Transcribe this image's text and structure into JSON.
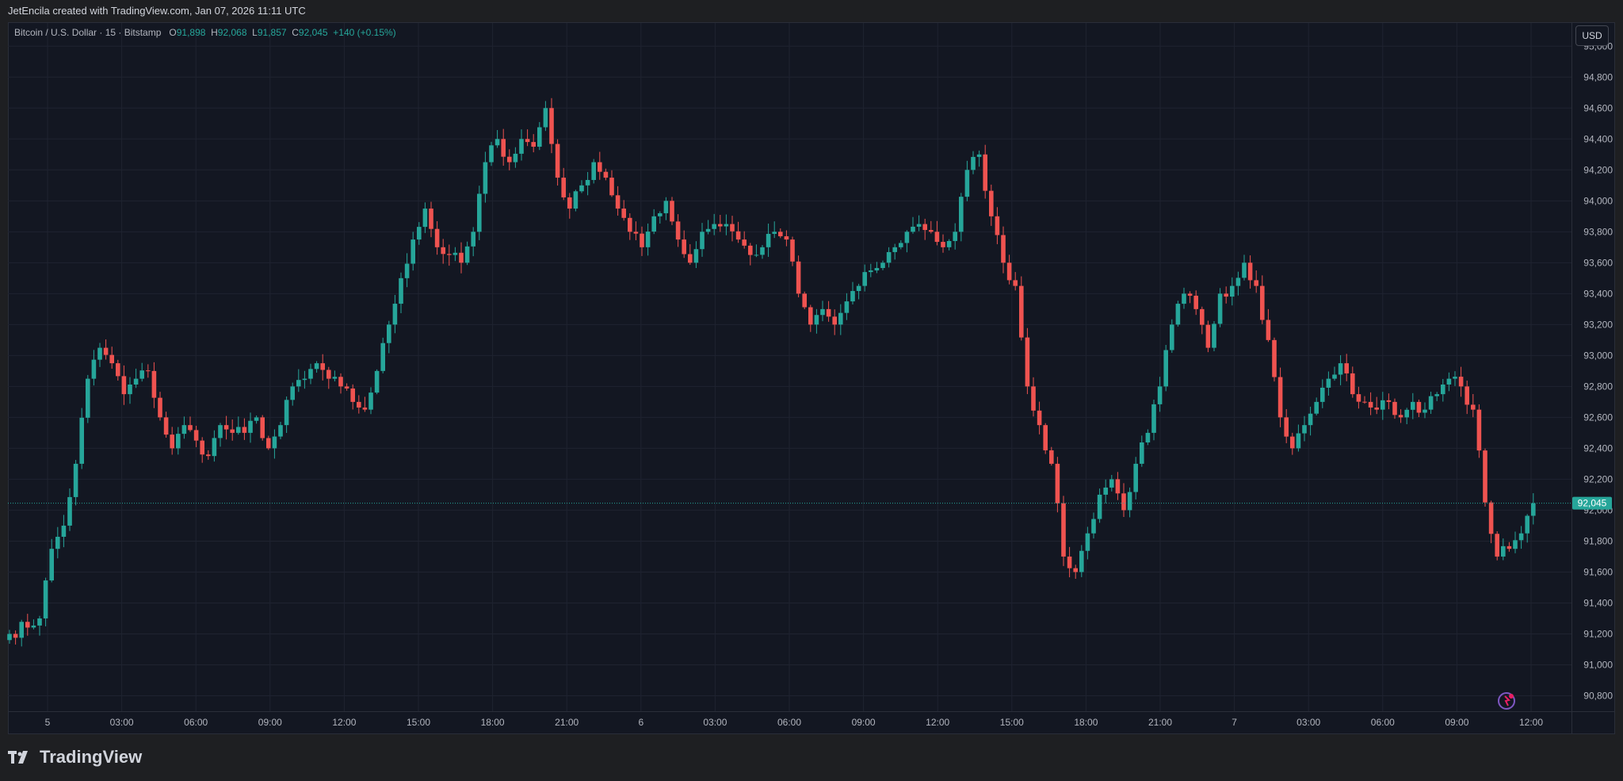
{
  "header": {
    "attribution": "JetEncila created with TradingView.com, Jan 07, 2026 11:11 UTC"
  },
  "legend": {
    "symbol": "Bitcoin / U.S. Dollar · 15 · Bitstamp",
    "o_label": "O",
    "o_value": "91,898",
    "h_label": "H",
    "h_value": "92,068",
    "l_label": "L",
    "l_value": "91,857",
    "c_label": "C",
    "c_value": "92,045",
    "change": "+140 (+0.15%)"
  },
  "currency_button": "USD",
  "last_price_label": "92,045",
  "footer": {
    "brand": "TradingView"
  },
  "colors": {
    "up": "#26a69a",
    "down": "#ef5350",
    "background": "#131722",
    "grid": "#1f2330",
    "axis_text": "#b2b5be"
  },
  "chart_data": {
    "type": "candlestick",
    "title": "Bitcoin / U.S. Dollar · 15 · Bitstamp",
    "ylim": [
      90700,
      95150
    ],
    "y_ticks": [
      95000,
      94800,
      94600,
      94400,
      94200,
      94000,
      93800,
      93600,
      93400,
      93200,
      93000,
      92800,
      92600,
      92400,
      92200,
      92000,
      91800,
      91600,
      91400,
      91200,
      91000,
      90800
    ],
    "y_tick_labels": [
      "95,000",
      "94,800",
      "94,600",
      "94,400",
      "94,200",
      "94,000",
      "93,800",
      "93,600",
      "93,400",
      "93,200",
      "93,000",
      "92,800",
      "92,600",
      "92,400",
      "92,200",
      "92,000",
      "91,800",
      "91,600",
      "91,400",
      "91,200",
      "91,000",
      "90,800"
    ],
    "x_tick_labels": [
      "5",
      "03:00",
      "06:00",
      "09:00",
      "12:00",
      "15:00",
      "18:00",
      "21:00",
      "6",
      "03:00",
      "06:00",
      "09:00",
      "12:00",
      "15:00",
      "18:00",
      "21:00",
      "7",
      "03:00",
      "06:00",
      "09:00",
      "12:00"
    ],
    "last_price": 92045,
    "anchors": [
      [
        0,
        91200
      ],
      [
        5,
        91300
      ],
      [
        7,
        91750
      ],
      [
        9,
        91900
      ],
      [
        11,
        92300
      ],
      [
        13,
        92850
      ],
      [
        15,
        93050
      ],
      [
        17,
        92950
      ],
      [
        19,
        92750
      ],
      [
        21,
        92850
      ],
      [
        23,
        92900
      ],
      [
        25,
        92600
      ],
      [
        27,
        92400
      ],
      [
        29,
        92550
      ],
      [
        31,
        92450
      ],
      [
        33,
        92350
      ],
      [
        35,
        92550
      ],
      [
        37,
        92500
      ],
      [
        39,
        92500
      ],
      [
        41,
        92600
      ],
      [
        43,
        92400
      ],
      [
        45,
        92550
      ],
      [
        47,
        92800
      ],
      [
        49,
        92850
      ],
      [
        51,
        92950
      ],
      [
        53,
        92850
      ],
      [
        55,
        92800
      ],
      [
        57,
        92700
      ],
      [
        59,
        92650
      ],
      [
        61,
        92900
      ],
      [
        63,
        93200
      ],
      [
        65,
        93500
      ],
      [
        67,
        93750
      ],
      [
        69,
        93950
      ],
      [
        71,
        93700
      ],
      [
        73,
        93650
      ],
      [
        75,
        93600
      ],
      [
        77,
        93800
      ],
      [
        79,
        94250
      ],
      [
        81,
        94400
      ],
      [
        83,
        94250
      ],
      [
        85,
        94400
      ],
      [
        87,
        94350
      ],
      [
        89,
        94600
      ],
      [
        91,
        94150
      ],
      [
        93,
        93950
      ],
      [
        95,
        94100
      ],
      [
        97,
        94250
      ],
      [
        99,
        94150
      ],
      [
        101,
        93950
      ],
      [
        103,
        93800
      ],
      [
        105,
        93700
      ],
      [
        107,
        93900
      ],
      [
        109,
        94000
      ],
      [
        111,
        93750
      ],
      [
        113,
        93600
      ],
      [
        115,
        93800
      ],
      [
        117,
        93850
      ],
      [
        119,
        93850
      ],
      [
        121,
        93750
      ],
      [
        123,
        93650
      ],
      [
        125,
        93700
      ],
      [
        127,
        93800
      ],
      [
        129,
        93750
      ],
      [
        131,
        93400
      ],
      [
        133,
        93200
      ],
      [
        135,
        93300
      ],
      [
        137,
        93200
      ],
      [
        139,
        93350
      ],
      [
        141,
        93450
      ],
      [
        143,
        93550
      ],
      [
        145,
        93600
      ],
      [
        147,
        93700
      ],
      [
        149,
        93800
      ],
      [
        151,
        93850
      ],
      [
        153,
        93800
      ],
      [
        155,
        93700
      ],
      [
        157,
        93800
      ],
      [
        159,
        94200
      ],
      [
        161,
        94300
      ],
      [
        163,
        93900
      ],
      [
        165,
        93600
      ],
      [
        167,
        93450
      ],
      [
        169,
        92800
      ],
      [
        171,
        92550
      ],
      [
        173,
        92300
      ],
      [
        175,
        91700
      ],
      [
        177,
        91600
      ],
      [
        179,
        91850
      ],
      [
        181,
        92100
      ],
      [
        183,
        92200
      ],
      [
        185,
        92000
      ],
      [
        187,
        92300
      ],
      [
        189,
        92500
      ],
      [
        191,
        92800
      ],
      [
        193,
        93200
      ],
      [
        195,
        93400
      ],
      [
        197,
        93300
      ],
      [
        199,
        93050
      ],
      [
        201,
        93400
      ],
      [
        203,
        93450
      ],
      [
        205,
        93600
      ],
      [
        207,
        93450
      ],
      [
        209,
        93100
      ],
      [
        211,
        92600
      ],
      [
        213,
        92400
      ],
      [
        215,
        92550
      ],
      [
        217,
        92700
      ],
      [
        219,
        92850
      ],
      [
        221,
        92950
      ],
      [
        223,
        92750
      ],
      [
        225,
        92700
      ],
      [
        227,
        92650
      ],
      [
        229,
        92700
      ],
      [
        231,
        92600
      ],
      [
        233,
        92700
      ],
      [
        235,
        92650
      ],
      [
        237,
        92750
      ],
      [
        239,
        92850
      ],
      [
        241,
        92800
      ],
      [
        243,
        92650
      ],
      [
        245,
        92050
      ],
      [
        247,
        91700
      ],
      [
        249,
        91750
      ],
      [
        251,
        91850
      ],
      [
        253,
        92045
      ]
    ]
  }
}
